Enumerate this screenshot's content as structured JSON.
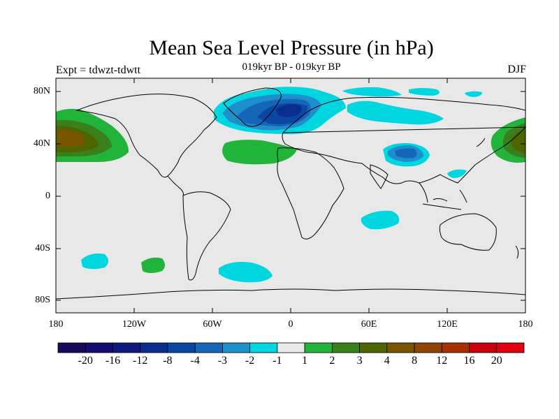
{
  "title": "Mean Sea Level Pressure (in hPa)",
  "subtitle": "019kyr BP - 019kyr BP",
  "expt": "Expt = tdwzt-tdwtt",
  "season": "DJF",
  "lat_labels": [
    "80N",
    "40N",
    "0",
    "40S",
    "80S"
  ],
  "lon_labels": [
    "180",
    "120W",
    "60W",
    "0",
    "60E",
    "120E",
    "180"
  ],
  "colorbar": {
    "labels": [
      "-20",
      "-16",
      "-12",
      "-8",
      "-4",
      "-3",
      "-2",
      "-1",
      "1",
      "2",
      "3",
      "4",
      "8",
      "12",
      "16",
      "20"
    ],
    "colors": [
      "#1a0a5c",
      "#140c73",
      "#0f1a80",
      "#0a2e8f",
      "#0a47a3",
      "#1566b8",
      "#1f8fcc",
      "#00d6e0",
      "#e8e8e8",
      "#22b33a",
      "#3a801a",
      "#4d6600",
      "#7a5500",
      "#8f4500",
      "#a82f00",
      "#c8000c",
      "#e00010"
    ]
  },
  "chart_data": {
    "type": "contour-map",
    "variable": "Mean Sea Level Pressure anomaly (hPa)",
    "region": "global",
    "anomalies": [
      {
        "region": "North Pacific (Aleutian)",
        "sign": "positive",
        "max_level": "8"
      },
      {
        "region": "Greenland / North Atlantic",
        "sign": "negative",
        "min_level": "-8"
      },
      {
        "region": "Tibetan Plateau",
        "sign": "negative",
        "min_level": "-4"
      },
      {
        "region": "Subtropical North Atlantic",
        "sign": "positive",
        "max_level": "2"
      },
      {
        "region": "Southern Ocean (S Pacific)",
        "sign": "positive",
        "max_level": "2"
      },
      {
        "region": "Southern Ocean (S Atlantic)",
        "sign": "negative",
        "min_level": "-2"
      },
      {
        "region": "South Indian Ocean",
        "sign": "negative",
        "min_level": "-2"
      }
    ]
  }
}
